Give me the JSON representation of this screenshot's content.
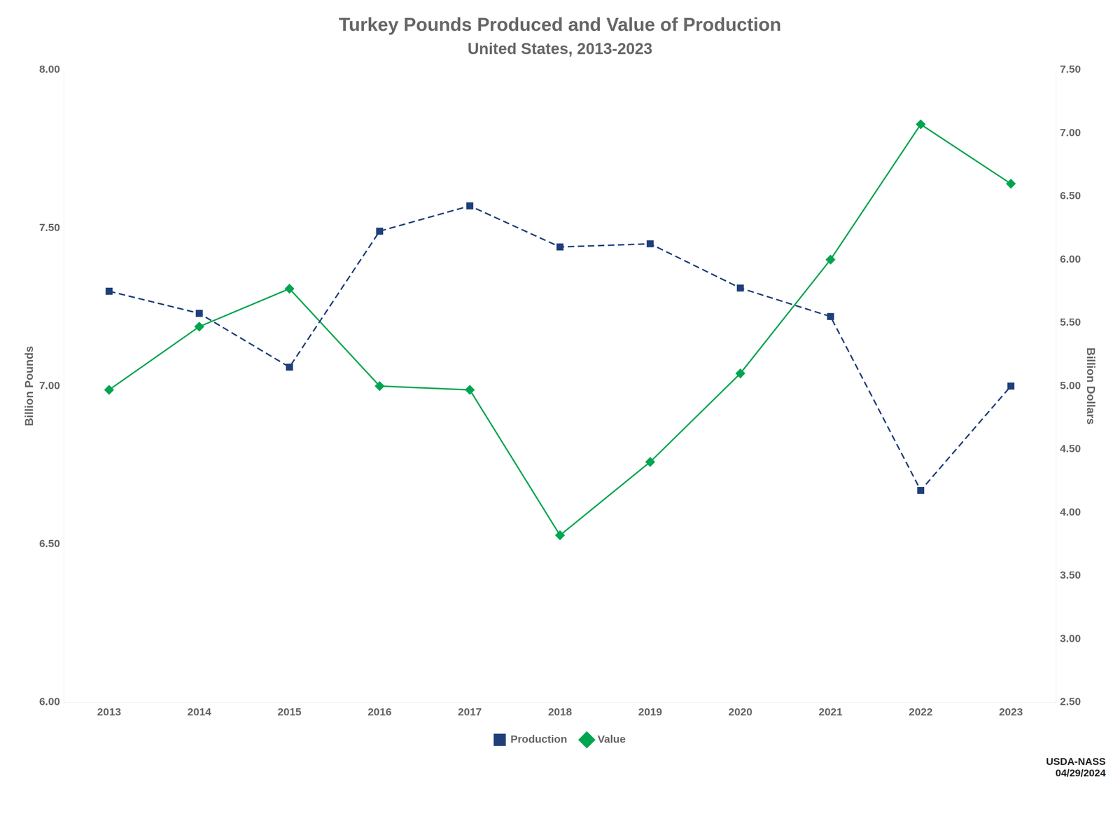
{
  "chart_data": {
    "type": "line",
    "title": "Turkey Pounds Produced and Value of Production",
    "subtitle": "United States, 2013-2023",
    "ylabel": "Billion Pounds",
    "y2label": "Billion Dollars",
    "x": [
      2013,
      2014,
      2015,
      2016,
      2017,
      2018,
      2019,
      2020,
      2021,
      2022,
      2023
    ],
    "xlim": [
      2012.5,
      2023.5
    ],
    "xticks": [
      2013,
      2014,
      2015,
      2016,
      2017,
      2018,
      2019,
      2020,
      2021,
      2022,
      2023
    ],
    "series": [
      {
        "name": "Production",
        "color": "#1f3f7a",
        "marker": "square",
        "line_style": "dashed",
        "values": [
          7.3,
          7.23,
          7.06,
          7.49,
          7.57,
          7.44,
          7.45,
          7.31,
          7.22,
          6.67,
          7.0
        ]
      },
      {
        "name": "Value",
        "color": "#00a550",
        "marker": "diamond",
        "line_style": "solid",
        "axis": "y2",
        "values": [
          4.97,
          5.47,
          5.77,
          5.0,
          4.97,
          3.82,
          4.4,
          5.1,
          6.0,
          7.07,
          6.6
        ]
      }
    ],
    "ylim": [
      6.0,
      8.0
    ],
    "yticks": [
      {
        "value": 6.0,
        "label": "6.00"
      },
      {
        "value": 6.5,
        "label": "6.50"
      },
      {
        "value": 7.0,
        "label": "7.00"
      },
      {
        "value": 7.5,
        "label": "7.50"
      },
      {
        "value": 8.0,
        "label": "8.00"
      }
    ],
    "y2lim": [
      2.5,
      7.5
    ],
    "y2ticks": [
      {
        "value": 2.5,
        "label": "2.50"
      },
      {
        "value": 3.0,
        "label": "3.00"
      },
      {
        "value": 3.5,
        "label": "3.50"
      },
      {
        "value": 4.0,
        "label": "4.00"
      },
      {
        "value": 4.5,
        "label": "4.50"
      },
      {
        "value": 5.0,
        "label": "5.00"
      },
      {
        "value": 5.5,
        "label": "5.50"
      },
      {
        "value": 6.0,
        "label": "6.00"
      },
      {
        "value": 6.5,
        "label": "6.50"
      },
      {
        "value": 7.0,
        "label": "7.00"
      },
      {
        "value": 7.5,
        "label": "7.50"
      }
    ],
    "grid": false,
    "legend": "bottom",
    "annotations": [
      "USDA-NASS\n04/29/2024"
    ]
  }
}
